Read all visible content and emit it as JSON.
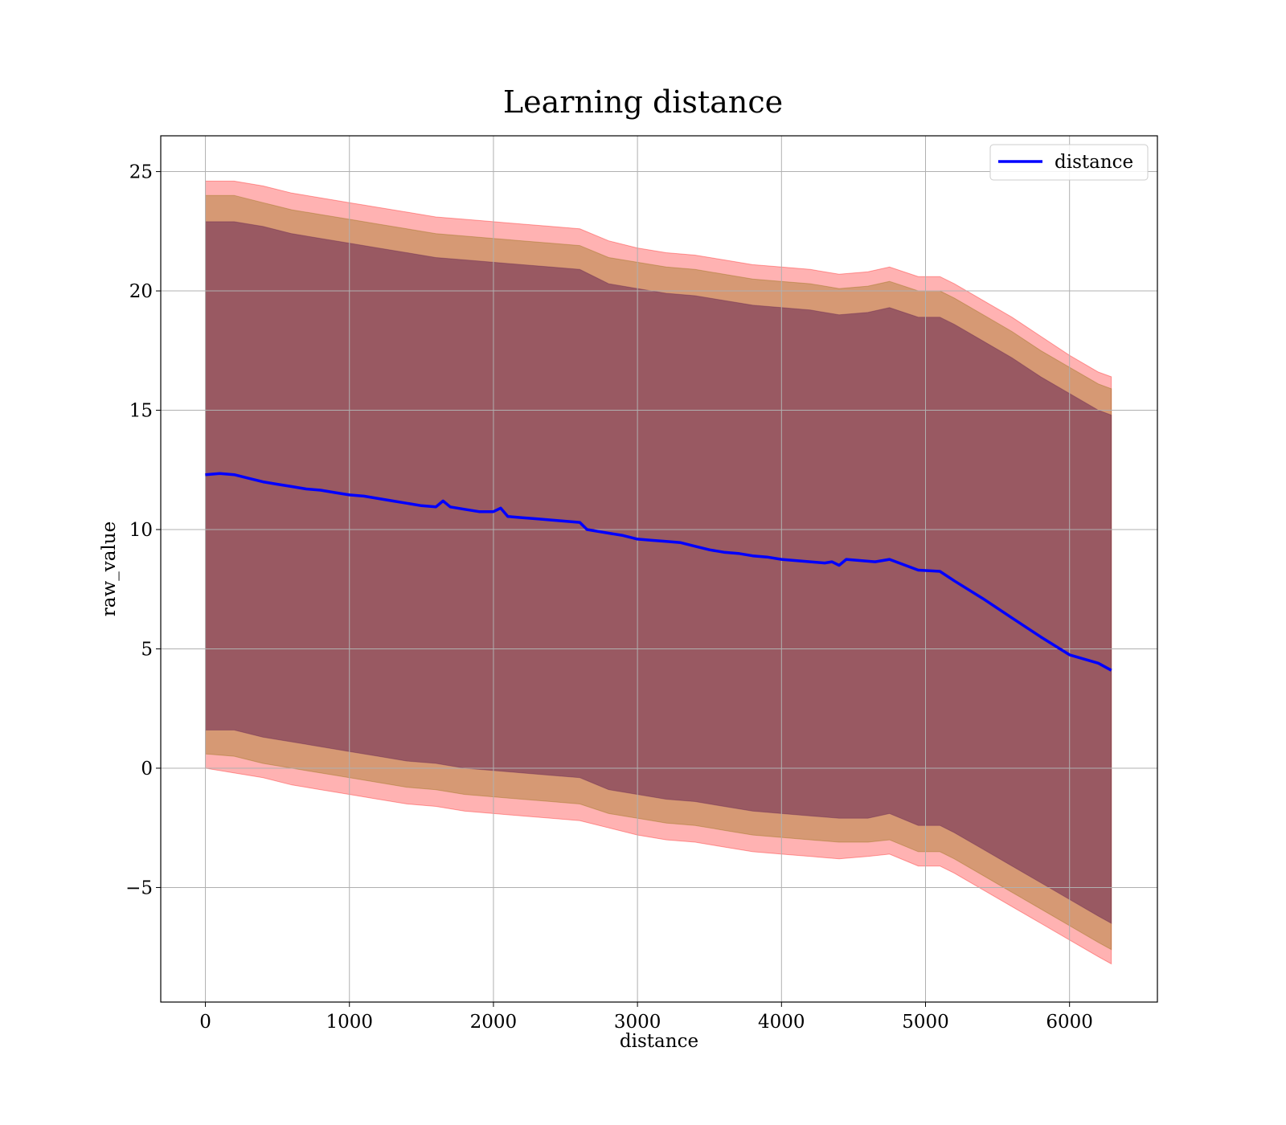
{
  "chart_data": {
    "type": "line",
    "title": "Learning distance",
    "xlabel": "distance",
    "ylabel": "raw_value",
    "xlim": [
      -310,
      6610
    ],
    "ylim": [
      -9.8,
      26.5
    ],
    "xticks": [
      0,
      1000,
      2000,
      3000,
      4000,
      5000,
      6000
    ],
    "xtick_labels": [
      "0",
      "1000",
      "2000",
      "3000",
      "4000",
      "5000",
      "6000"
    ],
    "yticks": [
      -5,
      0,
      5,
      10,
      15,
      20,
      25
    ],
    "ytick_labels": [
      "−5",
      "0",
      "5",
      "10",
      "15",
      "20",
      "25"
    ],
    "grid": true,
    "legend": {
      "position": "top-right",
      "entries": [
        "distance"
      ]
    },
    "colors": {
      "line": "#0000ff",
      "band_outer": "#ff0000",
      "band_middle": "#8a6a00",
      "band_inner": "#5b1a4f"
    },
    "series": [
      {
        "name": "distance",
        "x": [
          0,
          100,
          200,
          300,
          400,
          500,
          600,
          700,
          800,
          900,
          1000,
          1100,
          1200,
          1300,
          1400,
          1500,
          1600,
          1650,
          1700,
          1800,
          1900,
          2000,
          2050,
          2100,
          2200,
          2300,
          2400,
          2500,
          2600,
          2650,
          2700,
          2800,
          2900,
          3000,
          3100,
          3200,
          3300,
          3400,
          3500,
          3600,
          3700,
          3800,
          3900,
          4000,
          4100,
          4200,
          4300,
          4350,
          4400,
          4450,
          4650,
          4750,
          4950,
          5100,
          5200,
          5400,
          5600,
          5800,
          6000,
          6200,
          6290
        ],
        "y": [
          12.3,
          12.35,
          12.3,
          12.15,
          12.0,
          11.9,
          11.8,
          11.7,
          11.65,
          11.55,
          11.45,
          11.4,
          11.3,
          11.2,
          11.1,
          11.0,
          10.95,
          11.2,
          10.95,
          10.85,
          10.75,
          10.75,
          10.9,
          10.55,
          10.5,
          10.45,
          10.4,
          10.35,
          10.3,
          10.0,
          9.95,
          9.85,
          9.75,
          9.6,
          9.55,
          9.5,
          9.45,
          9.3,
          9.15,
          9.05,
          9.0,
          8.9,
          8.85,
          8.75,
          8.7,
          8.65,
          8.6,
          8.65,
          8.5,
          8.75,
          8.65,
          8.75,
          8.3,
          8.25,
          7.85,
          7.1,
          6.3,
          5.5,
          4.75,
          4.4,
          4.1
        ]
      },
      {
        "name": "band-outer-upper",
        "x": [
          0,
          200,
          400,
          600,
          800,
          1000,
          1200,
          1400,
          1600,
          1800,
          2000,
          2200,
          2400,
          2600,
          2800,
          3000,
          3200,
          3400,
          3600,
          3800,
          4000,
          4200,
          4400,
          4600,
          4750,
          4950,
          5100,
          5200,
          5400,
          5600,
          5800,
          6000,
          6200,
          6290
        ],
        "y": [
          24.6,
          24.6,
          24.4,
          24.1,
          23.9,
          23.7,
          23.5,
          23.3,
          23.1,
          23.0,
          22.9,
          22.8,
          22.7,
          22.6,
          22.1,
          21.8,
          21.6,
          21.5,
          21.3,
          21.1,
          21.0,
          20.9,
          20.7,
          20.8,
          21.0,
          20.6,
          20.6,
          20.3,
          19.6,
          18.9,
          18.1,
          17.3,
          16.6,
          16.4
        ]
      },
      {
        "name": "band-outer-lower",
        "x": [
          0,
          200,
          400,
          600,
          800,
          1000,
          1200,
          1400,
          1600,
          1800,
          2000,
          2200,
          2400,
          2600,
          2800,
          3000,
          3200,
          3400,
          3600,
          3800,
          4000,
          4200,
          4400,
          4600,
          4750,
          4950,
          5100,
          5200,
          5400,
          5600,
          5800,
          6000,
          6200,
          6290
        ],
        "y": [
          0.0,
          -0.2,
          -0.4,
          -0.7,
          -0.9,
          -1.1,
          -1.3,
          -1.5,
          -1.6,
          -1.8,
          -1.9,
          -2.0,
          -2.1,
          -2.2,
          -2.5,
          -2.8,
          -3.0,
          -3.1,
          -3.3,
          -3.5,
          -3.6,
          -3.7,
          -3.8,
          -3.7,
          -3.6,
          -4.1,
          -4.1,
          -4.4,
          -5.1,
          -5.8,
          -6.5,
          -7.2,
          -7.9,
          -8.2
        ]
      },
      {
        "name": "band-middle-upper",
        "x": [
          0,
          200,
          400,
          600,
          800,
          1000,
          1200,
          1400,
          1600,
          1800,
          2000,
          2200,
          2400,
          2600,
          2800,
          3000,
          3200,
          3400,
          3600,
          3800,
          4000,
          4200,
          4400,
          4600,
          4750,
          4950,
          5100,
          5200,
          5400,
          5600,
          5800,
          6000,
          6200,
          6290
        ],
        "y": [
          24.0,
          24.0,
          23.7,
          23.4,
          23.2,
          23.0,
          22.8,
          22.6,
          22.4,
          22.3,
          22.2,
          22.1,
          22.0,
          21.9,
          21.4,
          21.2,
          21.0,
          20.9,
          20.7,
          20.5,
          20.4,
          20.3,
          20.1,
          20.2,
          20.4,
          20.0,
          20.0,
          19.7,
          19.0,
          18.3,
          17.5,
          16.8,
          16.1,
          15.9
        ]
      },
      {
        "name": "band-middle-lower",
        "x": [
          0,
          200,
          400,
          600,
          800,
          1000,
          1200,
          1400,
          1600,
          1800,
          2000,
          2200,
          2400,
          2600,
          2800,
          3000,
          3200,
          3400,
          3600,
          3800,
          4000,
          4200,
          4400,
          4600,
          4750,
          4950,
          5100,
          5200,
          5400,
          5600,
          5800,
          6000,
          6200,
          6290
        ],
        "y": [
          0.6,
          0.5,
          0.2,
          0.0,
          -0.2,
          -0.4,
          -0.6,
          -0.8,
          -0.9,
          -1.1,
          -1.2,
          -1.3,
          -1.4,
          -1.5,
          -1.9,
          -2.1,
          -2.3,
          -2.4,
          -2.6,
          -2.8,
          -2.9,
          -3.0,
          -3.1,
          -3.1,
          -3.0,
          -3.5,
          -3.5,
          -3.8,
          -4.5,
          -5.2,
          -5.9,
          -6.6,
          -7.3,
          -7.6
        ]
      },
      {
        "name": "band-inner-upper",
        "x": [
          0,
          200,
          400,
          600,
          800,
          1000,
          1200,
          1400,
          1600,
          1800,
          2000,
          2200,
          2400,
          2600,
          2800,
          3000,
          3200,
          3400,
          3600,
          3800,
          4000,
          4200,
          4400,
          4600,
          4750,
          4950,
          5100,
          5200,
          5400,
          5600,
          5800,
          6000,
          6200,
          6290
        ],
        "y": [
          22.9,
          22.9,
          22.7,
          22.4,
          22.2,
          22.0,
          21.8,
          21.6,
          21.4,
          21.3,
          21.2,
          21.1,
          21.0,
          20.9,
          20.3,
          20.1,
          19.9,
          19.8,
          19.6,
          19.4,
          19.3,
          19.2,
          19.0,
          19.1,
          19.3,
          18.9,
          18.9,
          18.6,
          17.9,
          17.2,
          16.4,
          15.7,
          15.0,
          14.8
        ]
      },
      {
        "name": "band-inner-lower",
        "x": [
          0,
          200,
          400,
          600,
          800,
          1000,
          1200,
          1400,
          1600,
          1800,
          2000,
          2200,
          2400,
          2600,
          2800,
          3000,
          3200,
          3400,
          3600,
          3800,
          4000,
          4200,
          4400,
          4600,
          4750,
          4950,
          5100,
          5200,
          5400,
          5600,
          5800,
          6000,
          6200,
          6290
        ],
        "y": [
          1.6,
          1.6,
          1.3,
          1.1,
          0.9,
          0.7,
          0.5,
          0.3,
          0.2,
          0.0,
          -0.1,
          -0.2,
          -0.3,
          -0.4,
          -0.9,
          -1.1,
          -1.3,
          -1.4,
          -1.6,
          -1.8,
          -1.9,
          -2.0,
          -2.1,
          -2.1,
          -1.9,
          -2.4,
          -2.4,
          -2.7,
          -3.4,
          -4.1,
          -4.8,
          -5.5,
          -6.2,
          -6.5
        ]
      }
    ]
  }
}
